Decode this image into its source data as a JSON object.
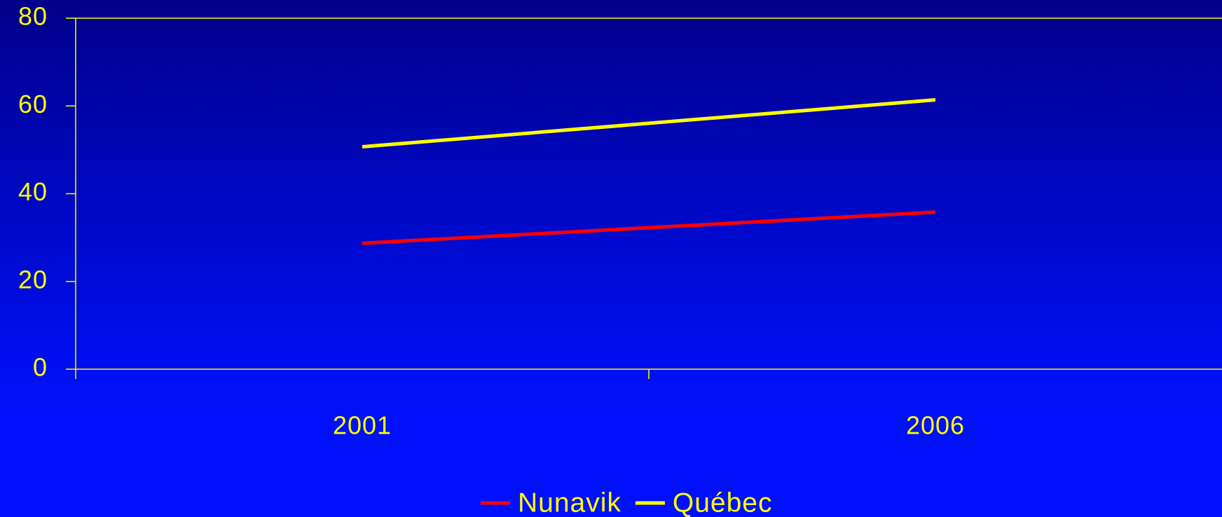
{
  "chart_data": {
    "type": "line",
    "categories": [
      "2001",
      "2006"
    ],
    "series": [
      {
        "name": "Nunavik",
        "color": "#ff0000",
        "values": [
          28.7,
          35.8
        ]
      },
      {
        "name": "Québec",
        "color": "#ffff00",
        "values": [
          50.7,
          61.4
        ]
      }
    ],
    "ylim": [
      0,
      80
    ],
    "yticks": [
      0,
      20,
      40,
      60,
      80
    ],
    "grid": false,
    "legend": "bottom"
  }
}
